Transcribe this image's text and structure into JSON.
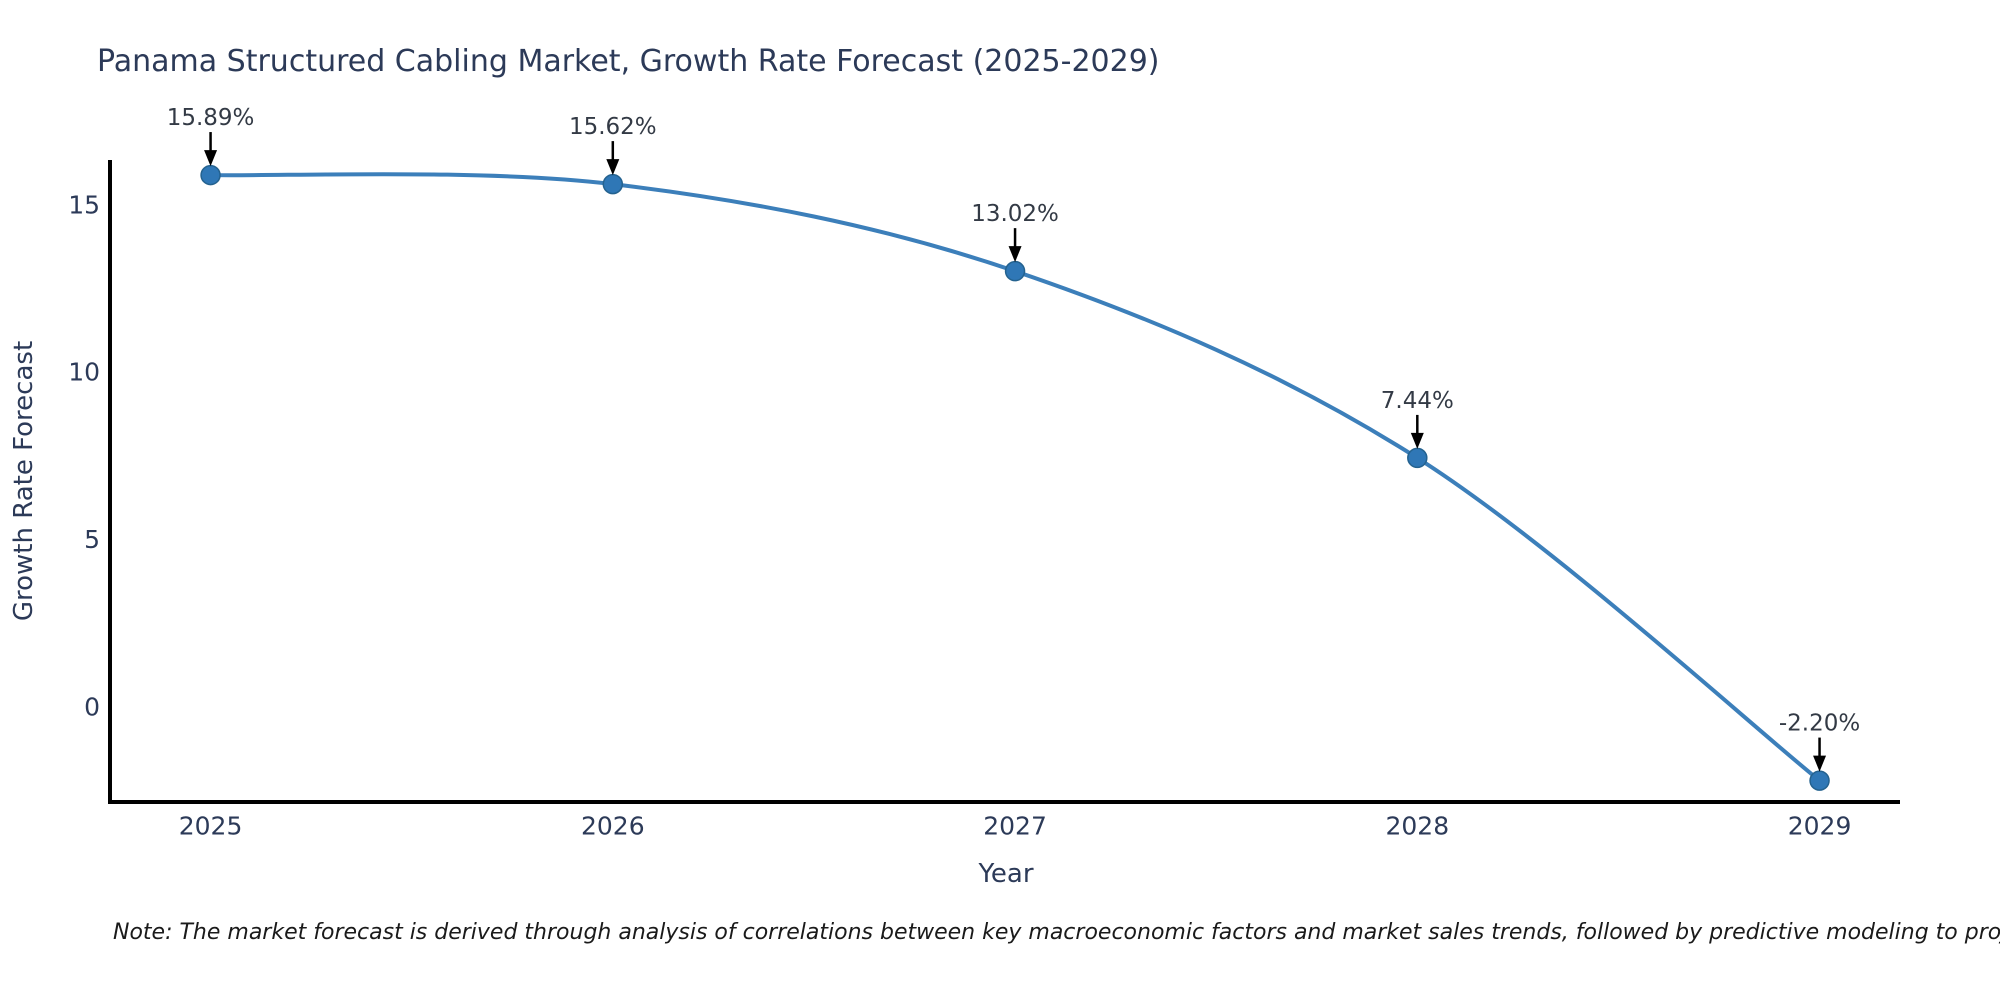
{
  "page": {
    "background": "#ffffff"
  },
  "chart_data": {
    "type": "line",
    "title": "Panama Structured Cabling Market, Growth Rate Forecast (2025-2029)",
    "xlabel": "Year",
    "ylabel": "Growth Rate Forecast",
    "x": [
      2025,
      2026,
      2027,
      2028,
      2029
    ],
    "values": [
      15.89,
      15.62,
      13.02,
      7.44,
      -2.2
    ],
    "point_labels": [
      "15.89%",
      "15.62%",
      "13.02%",
      "7.44%",
      "-2.20%"
    ],
    "xtick_labels": [
      "2025",
      "2026",
      "2027",
      "2028",
      "2029"
    ],
    "ytick_values": [
      15,
      10,
      5,
      0
    ],
    "ytick_labels": [
      "15",
      "10",
      "5",
      "0"
    ],
    "xlim": [
      2024.75,
      2029.2
    ],
    "ylim": [
      -2.84,
      16.34
    ],
    "grid": false,
    "legend": false,
    "line_shape": "spline",
    "annotation_style": "value label above point with black down arrow",
    "colors": {
      "line": "#3c7fba",
      "marker": "#2f77b6",
      "marker_edge": "#24628f",
      "axis": "#000000",
      "title_text": "#2c3a58",
      "tick_text": "#2c3a58",
      "annotation_text": "#333a45",
      "arrow": "#000000",
      "note_text": "#1a1a1a"
    },
    "note": "Note: The market forecast is derived through analysis of correlations between key macroeconomic factors and market sales trends, followed by predictive modeling to project future sales."
  }
}
